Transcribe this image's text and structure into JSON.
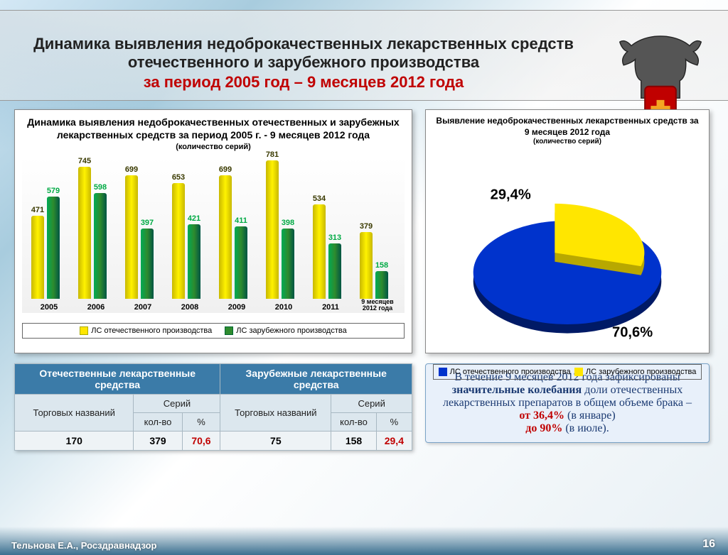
{
  "header": {
    "line1": "Динамика выявления недоброкачественных лекарственных средств отечественного и зарубежного производства",
    "line2": "за период  2005 год – 9 месяцев 2012 года"
  },
  "footer": {
    "author": "Тельнова Е.А., Росздравнадзор",
    "page": "16"
  },
  "bar_chart": {
    "type": "bar",
    "title": "Динамика выявления недоброкачественных отечественных и зарубежных лекарственных средств за период 2005 г. - 9 месяцев 2012 года",
    "subtitle": "(количество серий)",
    "categories": [
      "2005",
      "2006",
      "2007",
      "2008",
      "2009",
      "2010",
      "2011",
      "9 месяцев 2012 года"
    ],
    "series": [
      {
        "name": "ЛС отечественного производства",
        "color": "#ffe600",
        "values": [
          471,
          745,
          699,
          653,
          699,
          781,
          534,
          379
        ]
      },
      {
        "name": "ЛС зарубежного производства",
        "color": "#2e8b2e",
        "values": [
          579,
          598,
          397,
          421,
          411,
          398,
          313,
          158
        ]
      }
    ],
    "ymax": 800,
    "background_color": "#ffffff",
    "label_fontsize": 11,
    "legend_border": "#666666"
  },
  "pie_chart": {
    "type": "pie",
    "title": "Выявление недоброкачественных лекарственных средств за 9 месяцев 2012 года",
    "subtitle": "(количество серий)",
    "slices": [
      {
        "name": "ЛС отечественного производства",
        "value": 70.6,
        "label": "70,6%",
        "color": "#0033cc"
      },
      {
        "name": "ЛС зарубежного производства",
        "value": 29.4,
        "label": "29,4%",
        "color": "#ffe600"
      }
    ],
    "exploded_index": 1,
    "thickness_color_dark": "#b8a800"
  },
  "table": {
    "head1": [
      "Отечественные лекарственные средства",
      "Зарубежные лекарственные средства"
    ],
    "sub": [
      "Торговых названий",
      "Серий",
      "Торговых названий",
      "Серий"
    ],
    "sub2": [
      "кол-во",
      "%",
      "кол-во",
      "%"
    ],
    "row": [
      "170",
      "379",
      "70,6",
      "75",
      "158",
      "29,4"
    ],
    "header_bg": "#3b7ba8",
    "header_fg": "#ffffff",
    "cell_bg": "#eef3f6",
    "percent_color": "#c00000"
  },
  "note": {
    "text1": "В течение 9 месяцев 2012 года зафиксированы ",
    "bold1": "значительные колебания ",
    "text2": "доли отечественных лекарственных препаратов в общем объеме брака – ",
    "r1": "от 36,4%",
    "text3": "  (в январе) ",
    "r2": "до 90%",
    "text4": "  (в июле)."
  }
}
